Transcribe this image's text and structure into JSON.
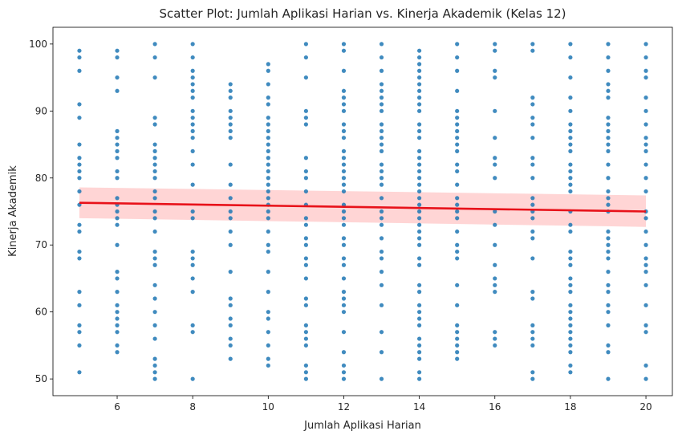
{
  "chart_data": {
    "type": "scatter",
    "title": "Scatter Plot: Jumlah Aplikasi Harian vs. Kinerja Akademik (Kelas 12)",
    "xlabel": "Jumlah Aplikasi Harian",
    "ylabel": "Kinerja Akademik",
    "xlim": [
      4.3,
      20.7
    ],
    "ylim": [
      47.5,
      102.5
    ],
    "xticks": [
      6,
      8,
      10,
      12,
      14,
      16,
      18,
      20
    ],
    "yticks": [
      50,
      60,
      70,
      80,
      90,
      100
    ],
    "grid": false,
    "point_color": "#1f77b4",
    "regression": {
      "color": "#e8121a",
      "band_color": "#ffb3b3",
      "x": [
        5,
        20
      ],
      "y": [
        76.3,
        75.0
      ],
      "ci_lower": [
        74.0,
        72.7
      ],
      "ci_upper": [
        78.6,
        77.4
      ]
    },
    "points": [
      {
        "x": 5,
        "y": [
          51,
          55,
          57,
          58,
          61,
          63,
          68,
          69,
          72,
          73,
          76,
          78,
          80,
          81,
          82,
          83,
          85,
          89,
          91,
          96,
          98,
          99
        ]
      },
      {
        "x": 6,
        "y": [
          54,
          55,
          57,
          58,
          59,
          60,
          61,
          63,
          65,
          66,
          70,
          73,
          74,
          75,
          76,
          77,
          80,
          81,
          83,
          84,
          85,
          86,
          87,
          93,
          95,
          98,
          99
        ]
      },
      {
        "x": 7,
        "y": [
          50,
          51,
          52,
          53,
          56,
          58,
          60,
          62,
          64,
          67,
          68,
          69,
          72,
          74,
          75,
          77,
          78,
          80,
          81,
          82,
          83,
          84,
          85,
          88,
          89,
          95,
          98,
          100
        ]
      },
      {
        "x": 8,
        "y": [
          50,
          57,
          58,
          63,
          65,
          67,
          68,
          69,
          74,
          75,
          79,
          82,
          84,
          86,
          87,
          88,
          89,
          90,
          92,
          93,
          94,
          95,
          96,
          98,
          100
        ]
      },
      {
        "x": 9,
        "y": [
          53,
          55,
          56,
          58,
          59,
          61,
          62,
          66,
          70,
          72,
          74,
          75,
          77,
          79,
          82,
          86,
          87,
          88,
          89,
          90,
          92,
          93,
          94
        ]
      },
      {
        "x": 10,
        "y": [
          52,
          53,
          55,
          57,
          59,
          60,
          63,
          66,
          69,
          70,
          72,
          74,
          75,
          76,
          77,
          78,
          79,
          80,
          81,
          82,
          83,
          84,
          85,
          86,
          87,
          88,
          89,
          91,
          92,
          94,
          96,
          97
        ]
      },
      {
        "x": 11,
        "y": [
          50,
          51,
          52,
          55,
          56,
          57,
          58,
          61,
          62,
          65,
          67,
          68,
          70,
          71,
          73,
          74,
          76,
          78,
          80,
          81,
          83,
          88,
          89,
          90,
          95,
          98,
          100
        ]
      },
      {
        "x": 12,
        "y": [
          50,
          51,
          52,
          54,
          57,
          60,
          61,
          62,
          63,
          65,
          67,
          68,
          70,
          71,
          73,
          74,
          75,
          76,
          78,
          79,
          80,
          81,
          82,
          83,
          84,
          86,
          87,
          88,
          90,
          91,
          92,
          93,
          96,
          99,
          100
        ]
      },
      {
        "x": 13,
        "y": [
          50,
          54,
          57,
          61,
          64,
          66,
          68,
          69,
          71,
          73,
          74,
          75,
          77,
          79,
          80,
          81,
          82,
          84,
          85,
          86,
          87,
          88,
          90,
          91,
          92,
          93,
          94,
          96,
          98,
          100
        ]
      },
      {
        "x": 14,
        "y": [
          50,
          51,
          53,
          54,
          55,
          56,
          58,
          59,
          60,
          61,
          63,
          64,
          67,
          68,
          70,
          71,
          72,
          73,
          74,
          75,
          76,
          77,
          78,
          79,
          80,
          81,
          82,
          83,
          84,
          86,
          87,
          88,
          90,
          91,
          92,
          93,
          94,
          95,
          96,
          97,
          98,
          99
        ]
      },
      {
        "x": 15,
        "y": [
          53,
          54,
          55,
          56,
          57,
          58,
          61,
          64,
          68,
          69,
          70,
          72,
          74,
          75,
          76,
          77,
          79,
          81,
          82,
          84,
          85,
          86,
          87,
          88,
          89,
          90,
          93,
          96,
          98,
          100
        ]
      },
      {
        "x": 16,
        "y": [
          55,
          56,
          57,
          63,
          64,
          65,
          67,
          70,
          73,
          75,
          80,
          82,
          83,
          86,
          90,
          95,
          96,
          99,
          100
        ]
      },
      {
        "x": 17,
        "y": [
          50,
          51,
          55,
          56,
          57,
          58,
          62,
          63,
          68,
          71,
          72,
          74,
          75,
          76,
          77,
          80,
          82,
          83,
          86,
          88,
          89,
          91,
          92,
          99,
          100
        ]
      },
      {
        "x": 18,
        "y": [
          51,
          52,
          54,
          55,
          56,
          57,
          58,
          59,
          60,
          61,
          63,
          64,
          65,
          67,
          68,
          69,
          72,
          73,
          75,
          78,
          79,
          80,
          81,
          82,
          84,
          85,
          86,
          87,
          88,
          90,
          92,
          95,
          98,
          100
        ]
      },
      {
        "x": 19,
        "y": [
          50,
          54,
          55,
          58,
          60,
          61,
          63,
          64,
          66,
          68,
          69,
          70,
          71,
          72,
          75,
          76,
          77,
          78,
          80,
          82,
          84,
          85,
          86,
          87,
          88,
          89,
          92,
          93,
          94,
          96,
          98,
          100
        ]
      },
      {
        "x": 20,
        "y": [
          50,
          52,
          57,
          58,
          61,
          64,
          66,
          67,
          68,
          70,
          72,
          74,
          75,
          78,
          80,
          82,
          84,
          85,
          86,
          88,
          90,
          92,
          95,
          96,
          98,
          100
        ]
      }
    ]
  }
}
